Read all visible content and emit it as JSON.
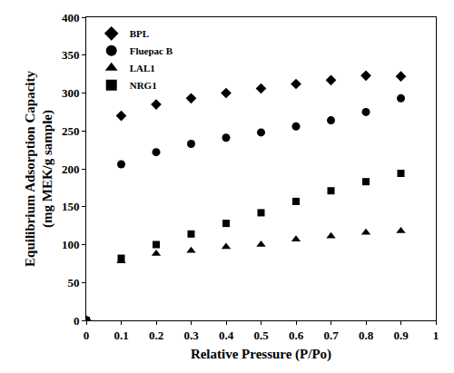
{
  "chart_data": {
    "type": "scatter",
    "x_label": "Relative Pressure (P/Po)",
    "y_label": [
      "Equilibrium Adsorption Capacity",
      "(mg MEK/g sample)"
    ],
    "x": [
      0,
      0.1,
      0.2,
      0.3,
      0.4,
      0.5,
      0.6,
      0.7,
      0.8,
      0.9
    ],
    "series": [
      {
        "name": "BPL",
        "color": "#000000",
        "marker": "diamond",
        "values": [
          0,
          270,
          285,
          293,
          300,
          306,
          312,
          317,
          323,
          322
        ]
      },
      {
        "name": "Fluepac B",
        "color": "#000000",
        "marker": "circle",
        "values": [
          0,
          206,
          222,
          233,
          241,
          248,
          256,
          264,
          275,
          293
        ]
      },
      {
        "name": "LAL1",
        "color": "#000000",
        "marker": "triangle-up",
        "values": [
          0,
          78,
          88,
          92,
          97,
          100,
          107,
          111,
          116,
          118
        ]
      },
      {
        "name": "NRG1",
        "color": "#000000",
        "marker": "square",
        "values": [
          0,
          82,
          100,
          114,
          128,
          142,
          157,
          171,
          183,
          194
        ]
      }
    ],
    "xlim": [
      0,
      1
    ],
    "xticks": [
      0,
      0.1,
      0.2,
      0.3,
      0.4,
      0.5,
      0.6,
      0.7,
      0.8,
      0.9,
      1
    ],
    "ylim": [
      0,
      400
    ],
    "yticks": [
      0,
      50,
      100,
      150,
      200,
      250,
      300,
      350,
      400
    ],
    "grid": false,
    "legend": "top-left"
  }
}
